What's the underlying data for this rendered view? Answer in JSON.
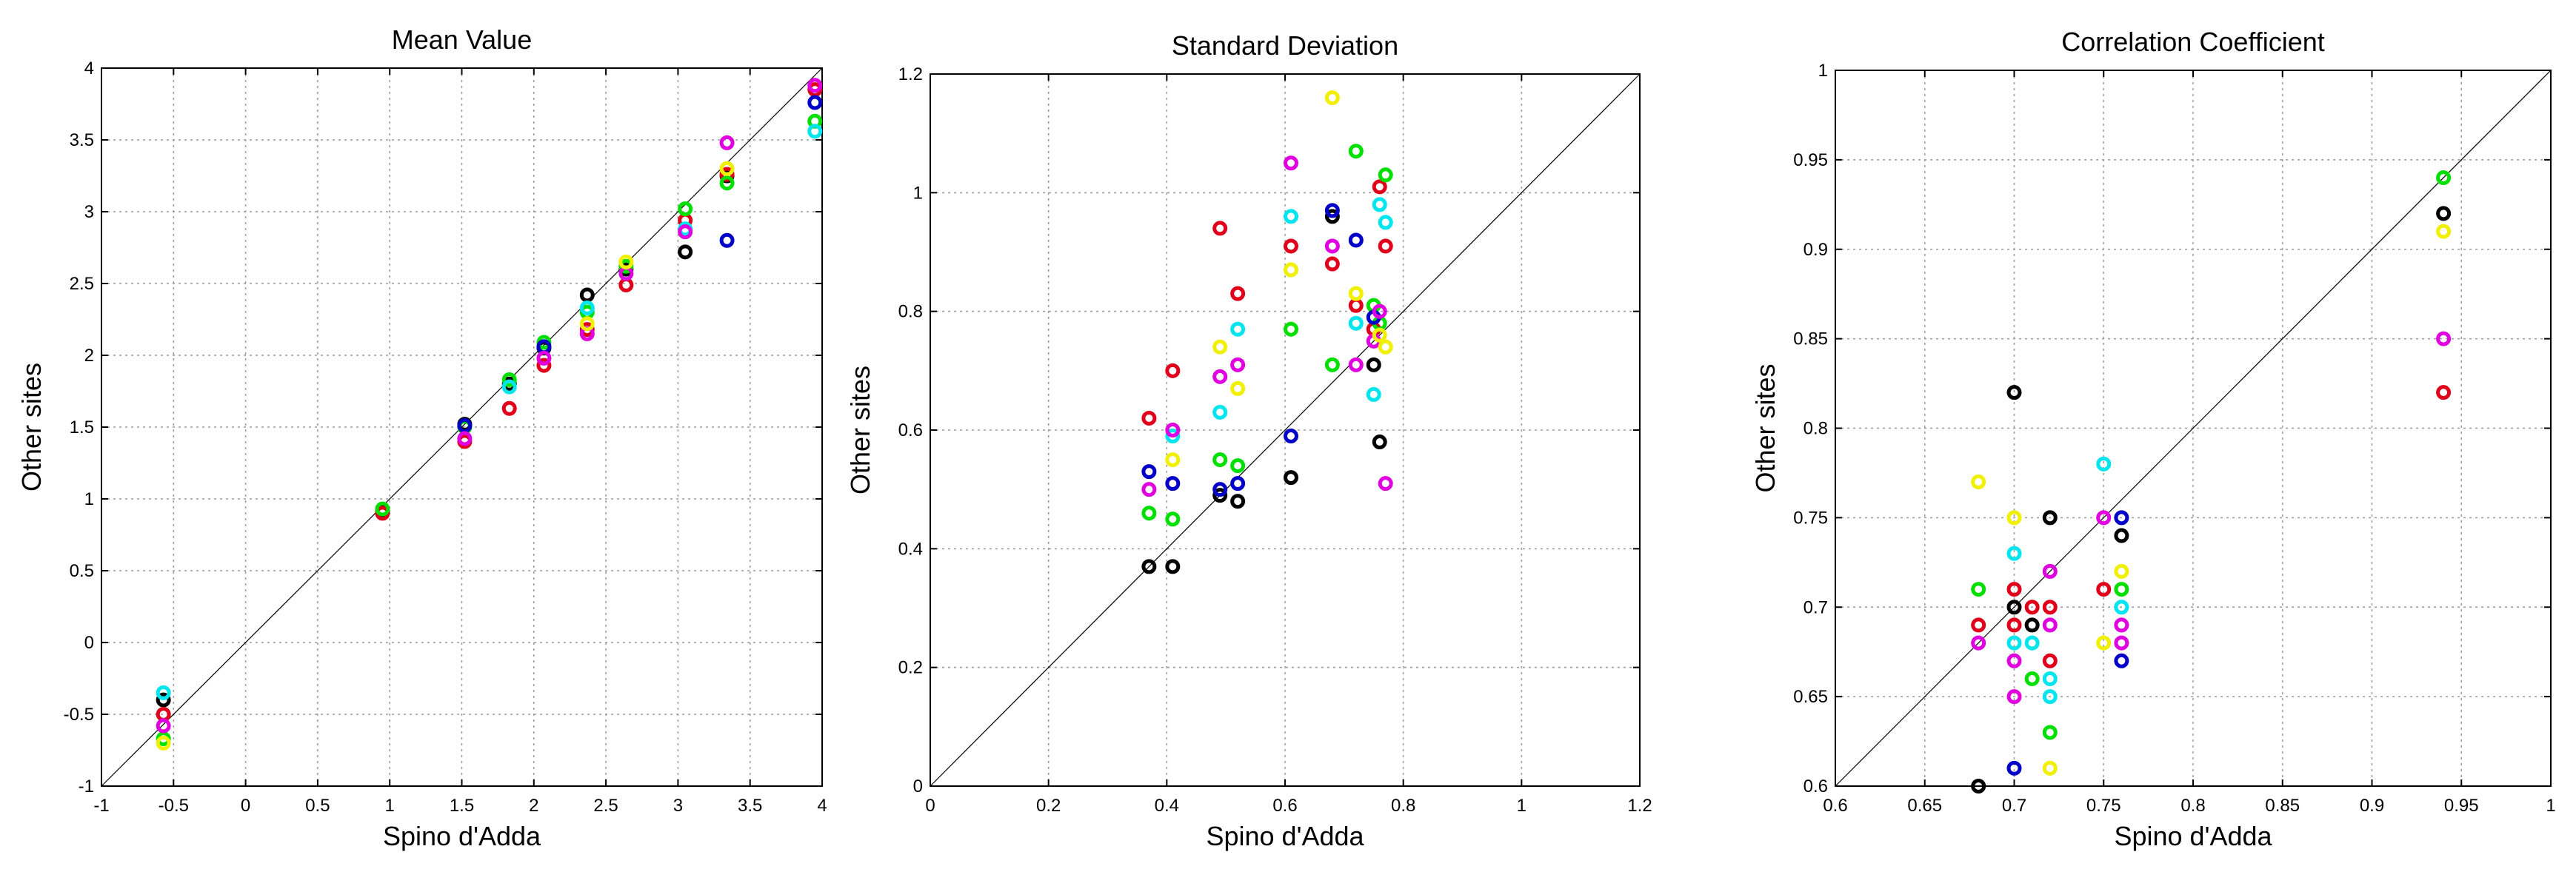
{
  "chart_data": [
    {
      "type": "scatter",
      "title": "Mean Value",
      "xlabel": "Spino d'Adda",
      "ylabel": "Other sites",
      "xlim": [
        -1,
        4
      ],
      "ylim": [
        -1,
        4
      ],
      "xticks": [
        -1,
        -0.5,
        0,
        0.5,
        1,
        1.5,
        2,
        2.5,
        3,
        3.5,
        4
      ],
      "yticks": [
        -1,
        -0.5,
        0,
        0.5,
        1,
        1.5,
        2,
        2.5,
        3,
        3.5,
        4
      ],
      "xtick_labels": [
        "-1",
        "-0.5",
        "0",
        "0.5",
        "1",
        "1.5",
        "2",
        "2.5",
        "3",
        "3.5",
        "4"
      ],
      "ytick_labels": [
        "-1",
        "-0.5",
        "0",
        "0.5",
        "1",
        "1.5",
        "2",
        "2.5",
        "3",
        "3.5",
        "4"
      ],
      "grid": true,
      "identity_line": true,
      "series": [
        {
          "name": "black",
          "color": "#000000",
          "points": [
            [
              -0.57,
              -0.4
            ],
            [
              0.95,
              0.92
            ],
            [
              1.52,
              1.52
            ],
            [
              1.83,
              1.8
            ],
            [
              2.07,
              2.05
            ],
            [
              2.37,
              2.42
            ],
            [
              2.64,
              2.6
            ],
            [
              3.05,
              2.72
            ],
            [
              3.34,
              3.25
            ]
          ]
        },
        {
          "name": "red",
          "color": "#e0001a",
          "points": [
            [
              -0.57,
              -0.5
            ],
            [
              0.95,
              0.9
            ],
            [
              1.52,
              1.4
            ],
            [
              1.83,
              1.63
            ],
            [
              2.07,
              1.93
            ],
            [
              2.37,
              2.18
            ],
            [
              2.64,
              2.49
            ],
            [
              3.05,
              2.94
            ],
            [
              3.34,
              3.26
            ],
            [
              3.95,
              3.85
            ]
          ]
        },
        {
          "name": "green",
          "color": "#00e000",
          "points": [
            [
              -0.57,
              -0.67
            ],
            [
              0.95,
              0.93
            ],
            [
              1.52,
              1.5
            ],
            [
              1.83,
              1.83
            ],
            [
              2.07,
              2.09
            ],
            [
              2.37,
              2.3
            ],
            [
              2.64,
              2.62
            ],
            [
              3.05,
              3.02
            ],
            [
              3.34,
              3.2
            ],
            [
              3.95,
              3.63
            ]
          ]
        },
        {
          "name": "blue",
          "color": "#0000c8",
          "points": [
            [
              1.52,
              1.51
            ],
            [
              2.07,
              2.06
            ],
            [
              3.34,
              2.8
            ],
            [
              3.95,
              3.76
            ]
          ]
        },
        {
          "name": "cyan",
          "color": "#00e5ee",
          "points": [
            [
              -0.57,
              -0.35
            ],
            [
              1.83,
              1.78
            ],
            [
              2.37,
              2.33
            ],
            [
              3.05,
              2.88
            ],
            [
              3.95,
              3.56
            ]
          ]
        },
        {
          "name": "magenta",
          "color": "#e000e0",
          "points": [
            [
              -0.57,
              -0.58
            ],
            [
              1.52,
              1.42
            ],
            [
              2.07,
              1.98
            ],
            [
              2.37,
              2.15
            ],
            [
              2.64,
              2.57
            ],
            [
              3.05,
              2.86
            ],
            [
              3.34,
              3.48
            ],
            [
              3.95,
              3.88
            ]
          ]
        },
        {
          "name": "yellow",
          "color": "#f0f000",
          "points": [
            [
              -0.57,
              -0.7
            ],
            [
              2.37,
              2.22
            ],
            [
              2.64,
              2.65
            ],
            [
              3.34,
              3.3
            ]
          ]
        }
      ]
    },
    {
      "type": "scatter",
      "title": "Standard Deviation",
      "xlabel": "Spino d'Adda",
      "ylabel": "Other sites",
      "xlim": [
        0,
        1.2
      ],
      "ylim": [
        0,
        1.2
      ],
      "xticks": [
        0,
        0.2,
        0.4,
        0.6,
        0.8,
        1,
        1.2
      ],
      "yticks": [
        0,
        0.2,
        0.4,
        0.6,
        0.8,
        1,
        1.2
      ],
      "xtick_labels": [
        "0",
        "0.2",
        "0.4",
        "0.6",
        "0.8",
        "1",
        "1.2"
      ],
      "ytick_labels": [
        "0",
        "0.2",
        "0.4",
        "0.6",
        "0.8",
        "1",
        "1.2"
      ],
      "grid": true,
      "identity_line": true,
      "series": [
        {
          "name": "black",
          "color": "#000000",
          "points": [
            [
              0.37,
              0.37
            ],
            [
              0.41,
              0.37
            ],
            [
              0.49,
              0.49
            ],
            [
              0.52,
              0.48
            ],
            [
              0.61,
              0.52
            ],
            [
              0.68,
              0.96
            ],
            [
              0.75,
              0.71
            ],
            [
              0.76,
              0.58
            ]
          ]
        },
        {
          "name": "red",
          "color": "#e0001a",
          "points": [
            [
              0.37,
              0.62
            ],
            [
              0.41,
              0.7
            ],
            [
              0.49,
              0.94
            ],
            [
              0.52,
              0.83
            ],
            [
              0.61,
              0.91
            ],
            [
              0.68,
              0.88
            ],
            [
              0.72,
              0.81
            ],
            [
              0.75,
              0.77
            ],
            [
              0.76,
              1.01
            ],
            [
              0.77,
              0.91
            ]
          ]
        },
        {
          "name": "green",
          "color": "#00e000",
          "points": [
            [
              0.37,
              0.46
            ],
            [
              0.41,
              0.45
            ],
            [
              0.49,
              0.55
            ],
            [
              0.52,
              0.54
            ],
            [
              0.61,
              0.77
            ],
            [
              0.68,
              0.71
            ],
            [
              0.72,
              1.07
            ],
            [
              0.75,
              0.81
            ],
            [
              0.76,
              0.78
            ],
            [
              0.77,
              1.03
            ]
          ]
        },
        {
          "name": "blue",
          "color": "#0000c8",
          "points": [
            [
              0.37,
              0.53
            ],
            [
              0.41,
              0.51
            ],
            [
              0.49,
              0.5
            ],
            [
              0.52,
              0.51
            ],
            [
              0.61,
              0.59
            ],
            [
              0.68,
              0.97
            ],
            [
              0.72,
              0.92
            ],
            [
              0.75,
              0.79
            ]
          ]
        },
        {
          "name": "cyan",
          "color": "#00e5ee",
          "points": [
            [
              0.41,
              0.59
            ],
            [
              0.49,
              0.63
            ],
            [
              0.52,
              0.77
            ],
            [
              0.61,
              0.96
            ],
            [
              0.72,
              0.78
            ],
            [
              0.75,
              0.66
            ],
            [
              0.76,
              0.98
            ],
            [
              0.77,
              0.95
            ]
          ]
        },
        {
          "name": "magenta",
          "color": "#e000e0",
          "points": [
            [
              0.37,
              0.5
            ],
            [
              0.41,
              0.6
            ],
            [
              0.49,
              0.69
            ],
            [
              0.52,
              0.71
            ],
            [
              0.61,
              1.05
            ],
            [
              0.68,
              0.91
            ],
            [
              0.72,
              0.71
            ],
            [
              0.75,
              0.75
            ],
            [
              0.76,
              0.8
            ],
            [
              0.77,
              0.51
            ]
          ]
        },
        {
          "name": "yellow",
          "color": "#f0f000",
          "points": [
            [
              0.41,
              0.55
            ],
            [
              0.49,
              0.74
            ],
            [
              0.52,
              0.67
            ],
            [
              0.61,
              0.87
            ],
            [
              0.68,
              1.16
            ],
            [
              0.72,
              0.83
            ],
            [
              0.76,
              0.76
            ],
            [
              0.77,
              0.74
            ]
          ]
        }
      ]
    },
    {
      "type": "scatter",
      "title": "Correlation Coefficient",
      "xlabel": "Spino d'Adda",
      "ylabel": "Other sites",
      "xlim": [
        0.6,
        1
      ],
      "ylim": [
        0.6,
        1
      ],
      "xticks": [
        0.6,
        0.65,
        0.7,
        0.75,
        0.8,
        0.85,
        0.9,
        0.95,
        1
      ],
      "yticks": [
        0.6,
        0.65,
        0.7,
        0.75,
        0.8,
        0.85,
        0.9,
        0.95,
        1
      ],
      "xtick_labels": [
        "0.6",
        "0.65",
        "0.7",
        "0.75",
        "0.8",
        "0.85",
        "0.9",
        "0.95",
        "1"
      ],
      "ytick_labels": [
        "0.6",
        "0.65",
        "0.7",
        "0.75",
        "0.8",
        "0.85",
        "0.9",
        "0.95",
        "1"
      ],
      "grid": true,
      "identity_line": true,
      "series": [
        {
          "name": "black",
          "color": "#000000",
          "points": [
            [
              0.68,
              0.6
            ],
            [
              0.7,
              0.82
            ],
            [
              0.7,
              0.7
            ],
            [
              0.71,
              0.69
            ],
            [
              0.72,
              0.75
            ],
            [
              0.76,
              0.74
            ],
            [
              0.94,
              0.92
            ]
          ]
        },
        {
          "name": "red",
          "color": "#e0001a",
          "points": [
            [
              0.68,
              0.69
            ],
            [
              0.7,
              0.71
            ],
            [
              0.7,
              0.69
            ],
            [
              0.71,
              0.7
            ],
            [
              0.72,
              0.7
            ],
            [
              0.72,
              0.67
            ],
            [
              0.75,
              0.71
            ],
            [
              0.94,
              0.82
            ]
          ]
        },
        {
          "name": "green",
          "color": "#00e000",
          "points": [
            [
              0.68,
              0.71
            ],
            [
              0.71,
              0.66
            ],
            [
              0.72,
              0.63
            ],
            [
              0.76,
              0.71
            ],
            [
              0.94,
              0.94
            ]
          ]
        },
        {
          "name": "blue",
          "color": "#0000c8",
          "points": [
            [
              0.7,
              0.61
            ],
            [
              0.76,
              0.75
            ],
            [
              0.76,
              0.67
            ]
          ]
        },
        {
          "name": "cyan",
          "color": "#00e5ee",
          "points": [
            [
              0.7,
              0.73
            ],
            [
              0.7,
              0.68
            ],
            [
              0.71,
              0.68
            ],
            [
              0.72,
              0.66
            ],
            [
              0.72,
              0.65
            ],
            [
              0.75,
              0.78
            ],
            [
              0.76,
              0.7
            ]
          ]
        },
        {
          "name": "magenta",
          "color": "#e000e0",
          "points": [
            [
              0.68,
              0.68
            ],
            [
              0.7,
              0.67
            ],
            [
              0.7,
              0.65
            ],
            [
              0.72,
              0.72
            ],
            [
              0.72,
              0.69
            ],
            [
              0.75,
              0.75
            ],
            [
              0.76,
              0.69
            ],
            [
              0.76,
              0.68
            ],
            [
              0.94,
              0.85
            ]
          ]
        },
        {
          "name": "yellow",
          "color": "#f0f000",
          "points": [
            [
              0.68,
              0.77
            ],
            [
              0.7,
              0.75
            ],
            [
              0.72,
              0.61
            ],
            [
              0.75,
              0.68
            ],
            [
              0.76,
              0.72
            ],
            [
              0.94,
              0.91
            ]
          ]
        }
      ]
    }
  ]
}
